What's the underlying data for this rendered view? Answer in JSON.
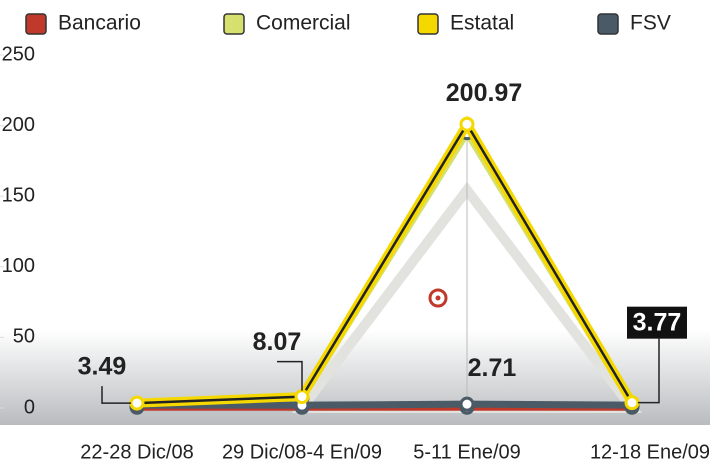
{
  "chart_data": {
    "type": "line",
    "categories": [
      "22-28 Dic/08",
      "29 Dic/08-4 En/09",
      "5-11 Ene/09",
      "12-18 Ene/09"
    ],
    "series": [
      {
        "name": "Bancario",
        "color": "#c0392b",
        "values": [
          0.5,
          0.5,
          0.5,
          0.5
        ]
      },
      {
        "name": "Comercial",
        "color": "#d6e06e",
        "values": [
          3,
          7,
          195,
          3
        ]
      },
      {
        "name": "Estatal",
        "color": "#f5d800",
        "values": [
          3.49,
          8.07,
          200.97,
          3.77
        ],
        "value_labels": [
          "3.49",
          "8.07",
          "200.97",
          "3.77"
        ]
      },
      {
        "name": "FSV",
        "color": "#4a5a66",
        "values": [
          2,
          2,
          2.71,
          2
        ],
        "value_labels": [
          null,
          null,
          "2.71",
          null
        ]
      }
    ],
    "ylim": [
      0,
      250
    ],
    "yticks": [
      0,
      50,
      100,
      150,
      200,
      250
    ],
    "legend": "top"
  }
}
